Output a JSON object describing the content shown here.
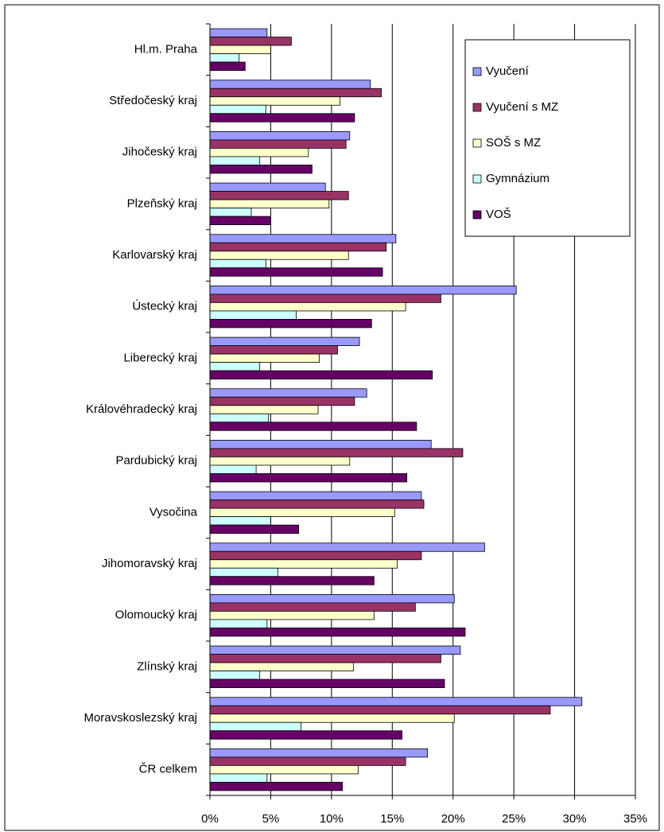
{
  "chart_data": {
    "type": "bar",
    "orientation": "horizontal",
    "categories": [
      "Hl.m. Praha",
      "Středočeský kraj",
      "Jihočeský kraj",
      "Plzeňský kraj",
      "Karlovarský kraj",
      "Ústecký kraj",
      "Liberecký kraj",
      "Královéhradecký kraj",
      "Pardubický kraj",
      "Vysočina",
      "Jihomoravský kraj",
      "Olomoucký kraj",
      "Zlínský kraj",
      "Moravskoslezský kraj",
      "ČR celkem"
    ],
    "series": [
      {
        "name": "Vyučení",
        "color": "#9999ff",
        "values": [
          4.7,
          13.2,
          11.5,
          9.5,
          15.3,
          25.2,
          12.3,
          12.9,
          18.2,
          17.4,
          22.6,
          20.1,
          20.6,
          30.6,
          17.9
        ]
      },
      {
        "name": "Vyučení s MZ",
        "color": "#993366",
        "values": [
          6.7,
          14.1,
          11.2,
          11.4,
          14.5,
          19.0,
          10.5,
          11.9,
          20.8,
          17.6,
          17.4,
          16.9,
          19.0,
          28.0,
          16.1
        ]
      },
      {
        "name": "SOŠ s MZ",
        "color": "#ffffcc",
        "values": [
          5.0,
          10.7,
          8.1,
          9.8,
          11.4,
          16.1,
          9.0,
          8.9,
          11.5,
          15.2,
          15.4,
          13.5,
          11.8,
          20.1,
          12.2
        ]
      },
      {
        "name": "Gymnázium",
        "color": "#ccffff",
        "values": [
          2.4,
          4.6,
          4.1,
          3.4,
          4.6,
          7.1,
          4.1,
          4.8,
          3.8,
          5.0,
          5.6,
          4.7,
          4.1,
          7.5,
          4.7
        ]
      },
      {
        "name": "VOŠ",
        "color": "#660066",
        "values": [
          2.9,
          11.9,
          8.4,
          5.0,
          14.2,
          13.3,
          18.3,
          17.0,
          16.2,
          7.3,
          13.5,
          21.0,
          19.3,
          15.8,
          10.9
        ]
      }
    ],
    "xlim": [
      0,
      35
    ],
    "xticks": [
      {
        "value": 0,
        "label": "0%"
      },
      {
        "value": 5,
        "label": "5%"
      },
      {
        "value": 10,
        "label": "10%"
      },
      {
        "value": 15,
        "label": "15%"
      },
      {
        "value": 20,
        "label": "20%"
      },
      {
        "value": 25,
        "label": "25%"
      },
      {
        "value": 30,
        "label": "30%"
      },
      {
        "value": 35,
        "label": "35%"
      }
    ],
    "grid": true,
    "legend": "upper right"
  }
}
